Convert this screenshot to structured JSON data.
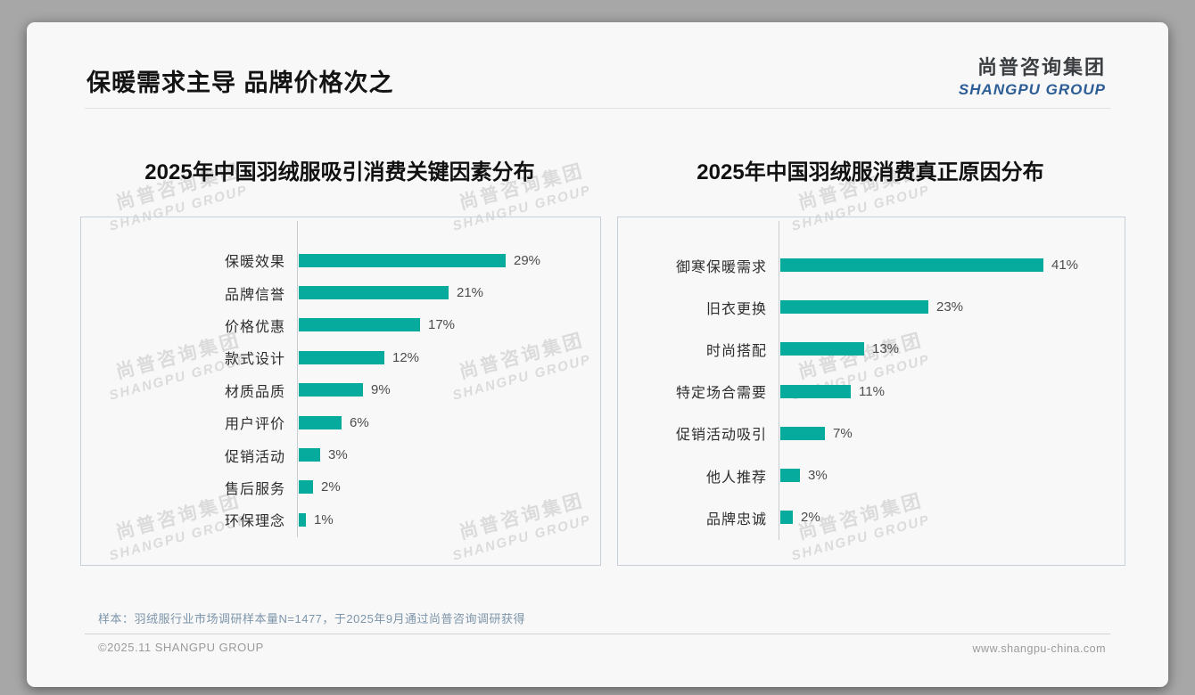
{
  "page": {
    "title": "保暖需求主导 品牌价格次之",
    "logo": {
      "cn": "尚普咨询集团",
      "en": "SHANGPU GROUP"
    },
    "watermark": {
      "cn": "尚普咨询集团",
      "en": "SHANGPU GROUP"
    },
    "footnote": "样本：羽绒服行业市场调研样本量N=1477，于2025年9月通过尚普咨询调研获得",
    "footer_left": "©2025.11 SHANGPU GROUP",
    "footer_right": "www.shangpu-china.com",
    "colors": {
      "accent": "#07ab9e",
      "logo_blue": "#2c5d94"
    }
  },
  "chart_data": [
    {
      "type": "bar",
      "orientation": "horizontal",
      "title": "2025年中国羽绒服吸引消费关键因素分布",
      "categories": [
        "保暖效果",
        "品牌信誉",
        "价格优惠",
        "款式设计",
        "材质品质",
        "用户评价",
        "促销活动",
        "售后服务",
        "环保理念"
      ],
      "values": [
        29,
        21,
        17,
        12,
        9,
        6,
        3,
        2,
        1
      ],
      "unit": "%",
      "bar_color": "#07ab9e",
      "value_labels": true,
      "grid": false,
      "legend": false
    },
    {
      "type": "bar",
      "orientation": "horizontal",
      "title": "2025年中国羽绒服消费真正原因分布",
      "categories": [
        "御寒保暖需求",
        "旧衣更换",
        "时尚搭配",
        "特定场合需要",
        "促销活动吸引",
        "他人推荐",
        "品牌忠诚"
      ],
      "values": [
        41,
        23,
        13,
        11,
        7,
        3,
        2
      ],
      "unit": "%",
      "bar_color": "#07ab9e",
      "value_labels": true,
      "grid": false,
      "legend": false
    }
  ]
}
